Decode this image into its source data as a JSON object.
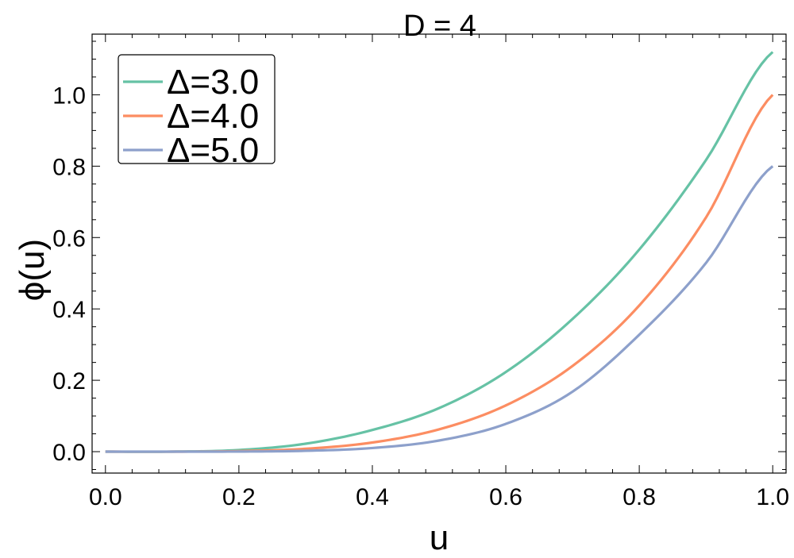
{
  "chart_data": {
    "type": "line",
    "title": "D = 4",
    "xlabel": "u",
    "ylabel": "ϕ(u)",
    "xlim": [
      -0.02,
      1.02
    ],
    "ylim": [
      -0.06,
      1.17
    ],
    "xticks": [
      0.0,
      0.2,
      0.4,
      0.6,
      0.8,
      1.0
    ],
    "xtick_labels": [
      "0.0",
      "0.2",
      "0.4",
      "0.6",
      "0.8",
      "1.0"
    ],
    "yticks": [
      0.0,
      0.2,
      0.4,
      0.6,
      0.8,
      1.0
    ],
    "ytick_labels": [
      "0.0",
      "0.2",
      "0.4",
      "0.6",
      "0.8",
      "1.0"
    ],
    "grid": false,
    "legend_position": "top-left",
    "x": [
      0.0,
      0.1,
      0.2,
      0.3,
      0.4,
      0.5,
      0.6,
      0.7,
      0.8,
      0.9,
      1.0
    ],
    "series": [
      {
        "name": "Δ=3.0",
        "color": "#66c2a5",
        "values": [
          0.0,
          0.0001,
          0.0046,
          0.0223,
          0.0607,
          0.1221,
          0.2231,
          0.3718,
          0.5664,
          0.8172,
          1.12
        ]
      },
      {
        "name": "Δ=4.0",
        "color": "#fc8d62",
        "values": [
          0.0,
          0.0,
          0.0016,
          0.0081,
          0.0256,
          0.0625,
          0.1296,
          0.2401,
          0.4096,
          0.6561,
          1.0
        ]
      },
      {
        "name": "Δ=5.0",
        "color": "#8da0cb",
        "values": [
          0.0,
          0.0,
          0.0003,
          0.0024,
          0.0102,
          0.0312,
          0.0778,
          0.1681,
          0.3277,
          0.5288,
          0.8
        ]
      }
    ]
  }
}
